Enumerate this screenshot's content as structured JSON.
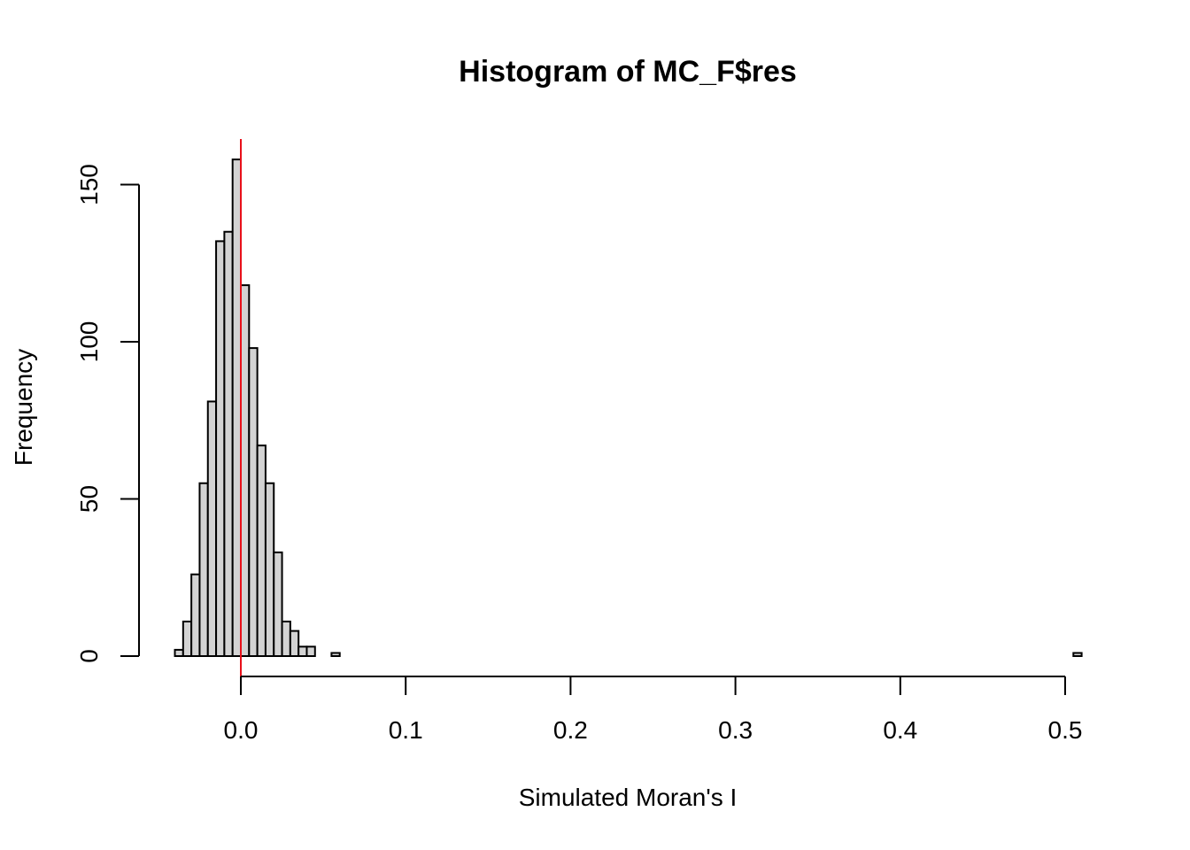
{
  "chart_data": {
    "type": "bar",
    "title": "Histogram of MC_F$res",
    "xlabel": "Simulated Moran's I",
    "ylabel": "Frequency",
    "xlim": [
      -0.04,
      0.51
    ],
    "ylim": [
      0,
      158
    ],
    "x_ticks": [
      "0.0",
      "0.1",
      "0.2",
      "0.3",
      "0.4",
      "0.5"
    ],
    "x_tick_values": [
      0,
      0.1,
      0.2,
      0.3,
      0.4,
      0.5
    ],
    "y_ticks": [
      "0",
      "50",
      "100",
      "150"
    ],
    "y_tick_values": [
      0,
      50,
      100,
      150
    ],
    "bin_width": 0.005,
    "bin_start": -0.04,
    "values": [
      2,
      11,
      26,
      55,
      81,
      132,
      135,
      158,
      118,
      98,
      67,
      55,
      33,
      11,
      8,
      3,
      3,
      0,
      0,
      1,
      0,
      0,
      0,
      0,
      0,
      0,
      0,
      0,
      0,
      0,
      0,
      0,
      0,
      0,
      0,
      0,
      0,
      0,
      0,
      0,
      0,
      0,
      0,
      0,
      0,
      0,
      0,
      0,
      0,
      0,
      0,
      0,
      0,
      0,
      0,
      0,
      0,
      0,
      0,
      0,
      0,
      0,
      0,
      0,
      0,
      0,
      0,
      0,
      0,
      0,
      0,
      0,
      0,
      0,
      0,
      0,
      0,
      0,
      0,
      0,
      0,
      0,
      0,
      0,
      0,
      0,
      0,
      0,
      0,
      0,
      0,
      0,
      0,
      0,
      0,
      0,
      0,
      0,
      0,
      0,
      0,
      0,
      0,
      0,
      0,
      0,
      0,
      0,
      0,
      1
    ],
    "reference_line": {
      "x": 0,
      "color": "#e8101a"
    },
    "bar_fill": "#d3d3d3",
    "bar_stroke": "#000000",
    "grid": false
  }
}
